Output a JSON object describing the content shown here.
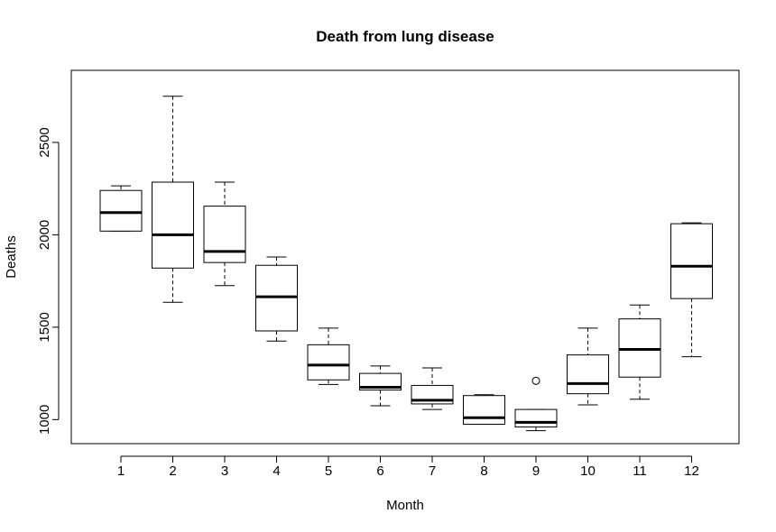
{
  "chart_data": {
    "type": "boxplot",
    "title": "Death from lung disease",
    "xlabel": "Month",
    "ylabel": "Deaths",
    "ylim": [
      870,
      2890
    ],
    "yticks": [
      1000,
      1500,
      2000,
      2500
    ],
    "grid": false,
    "colors": {
      "box_fill": "#ffffff",
      "stroke": "#000000",
      "background": "#ffffff"
    },
    "categories": [
      "1",
      "2",
      "3",
      "4",
      "5",
      "6",
      "7",
      "8",
      "9",
      "10",
      "11",
      "12"
    ],
    "boxes": [
      {
        "category": "1",
        "whisker_low": 2020,
        "q1": 2020,
        "median": 2120,
        "q3": 2240,
        "whisker_high": 2265,
        "outliers": []
      },
      {
        "category": "2",
        "whisker_low": 1635,
        "q1": 1820,
        "median": 2000,
        "q3": 2285,
        "whisker_high": 2750,
        "outliers": []
      },
      {
        "category": "3",
        "whisker_low": 1725,
        "q1": 1850,
        "median": 1910,
        "q3": 2155,
        "whisker_high": 2285,
        "outliers": []
      },
      {
        "category": "4",
        "whisker_low": 1425,
        "q1": 1480,
        "median": 1665,
        "q3": 1835,
        "whisker_high": 1880,
        "outliers": []
      },
      {
        "category": "5",
        "whisker_low": 1190,
        "q1": 1215,
        "median": 1295,
        "q3": 1405,
        "whisker_high": 1495,
        "outliers": []
      },
      {
        "category": "6",
        "whisker_low": 1075,
        "q1": 1160,
        "median": 1175,
        "q3": 1250,
        "whisker_high": 1290,
        "outliers": []
      },
      {
        "category": "7",
        "whisker_low": 1055,
        "q1": 1085,
        "median": 1105,
        "q3": 1185,
        "whisker_high": 1280,
        "outliers": []
      },
      {
        "category": "8",
        "whisker_low": 975,
        "q1": 975,
        "median": 1010,
        "q3": 1130,
        "whisker_high": 1135,
        "outliers": []
      },
      {
        "category": "9",
        "whisker_low": 940,
        "q1": 960,
        "median": 985,
        "q3": 1055,
        "whisker_high": 1055,
        "outliers": [
          1210
        ]
      },
      {
        "category": "10",
        "whisker_low": 1080,
        "q1": 1140,
        "median": 1195,
        "q3": 1350,
        "whisker_high": 1495,
        "outliers": []
      },
      {
        "category": "11",
        "whisker_low": 1110,
        "q1": 1230,
        "median": 1380,
        "q3": 1545,
        "whisker_high": 1620,
        "outliers": []
      },
      {
        "category": "12",
        "whisker_low": 1340,
        "q1": 1655,
        "median": 1830,
        "q3": 2060,
        "whisker_high": 2065,
        "outliers": []
      }
    ]
  }
}
